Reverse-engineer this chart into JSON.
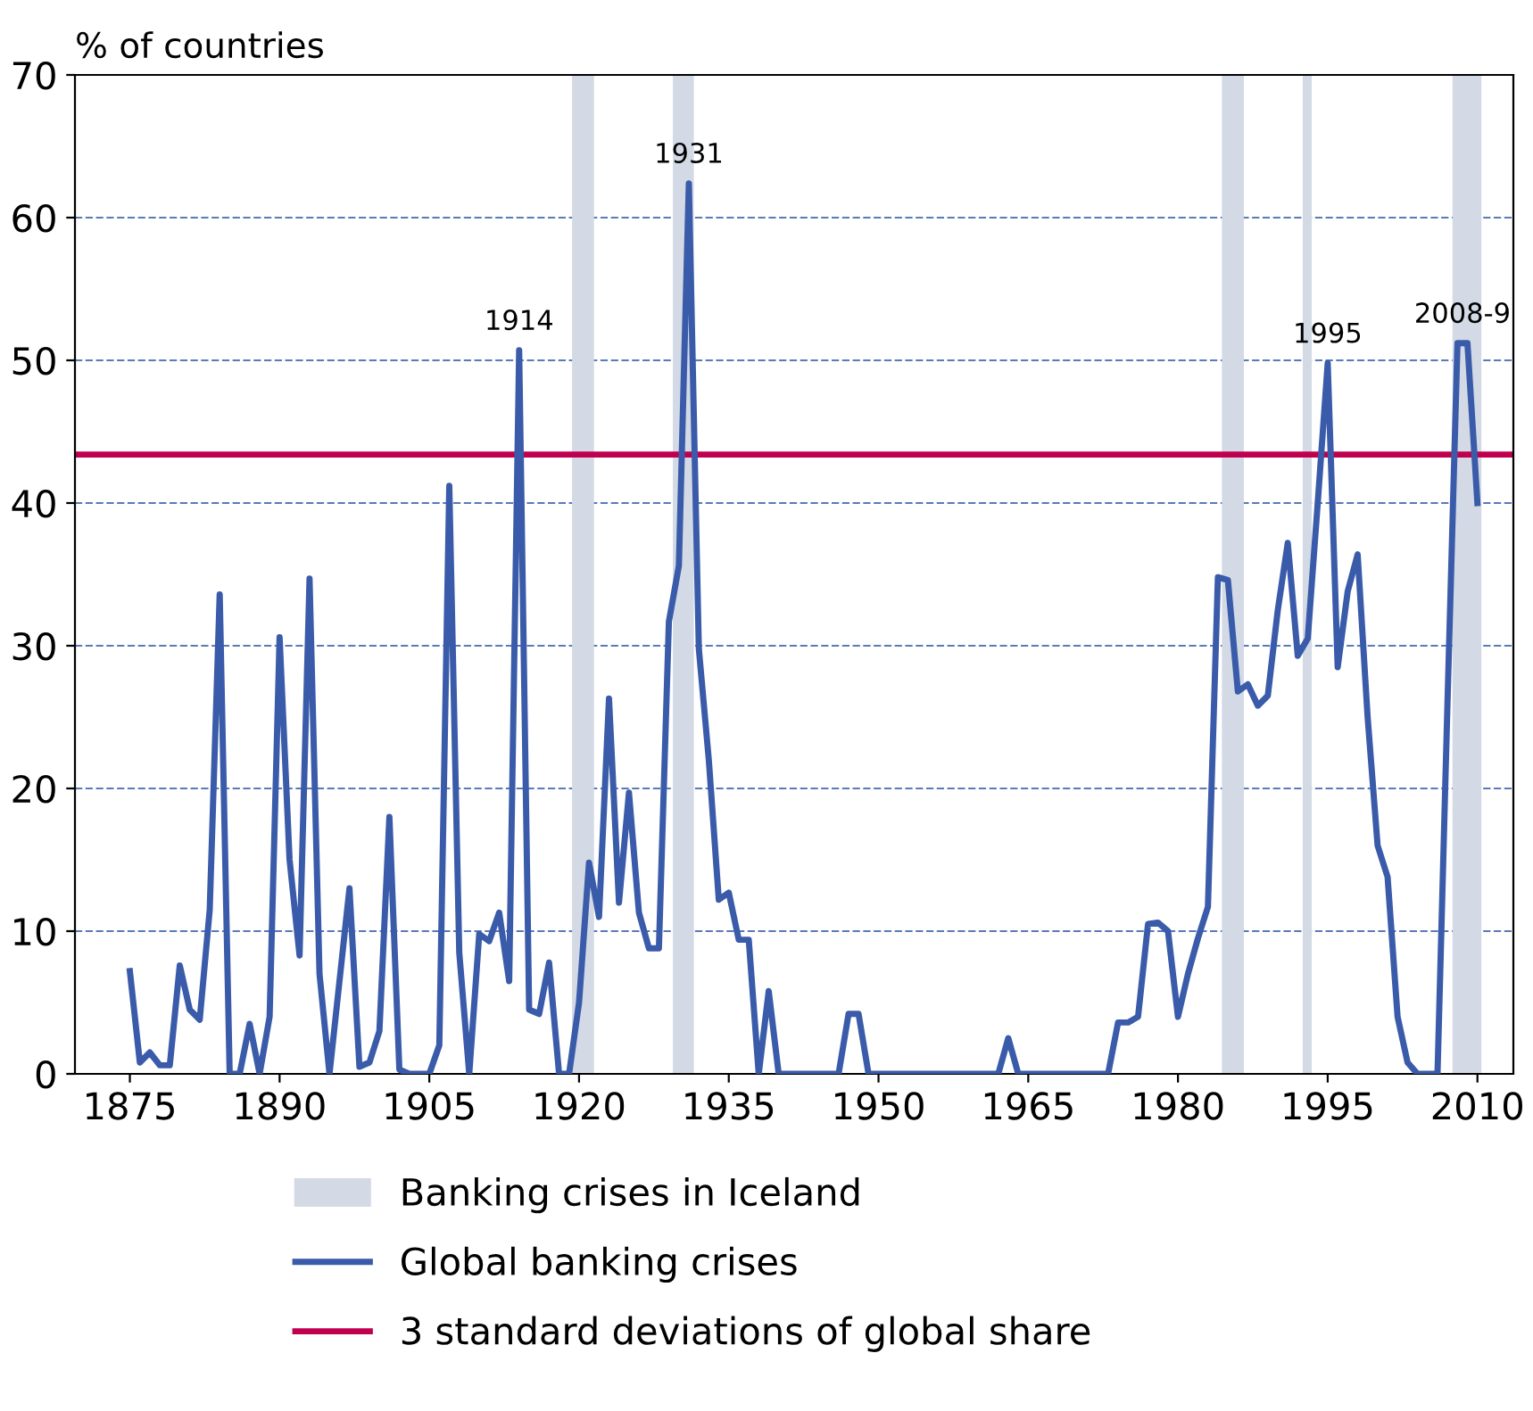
{
  "chart_data": {
    "type": "line",
    "ylabel": "% of countries",
    "x": [
      1875,
      1876,
      1877,
      1878,
      1879,
      1880,
      1881,
      1882,
      1883,
      1884,
      1885,
      1886,
      1887,
      1888,
      1889,
      1890,
      1891,
      1892,
      1893,
      1894,
      1895,
      1896,
      1897,
      1898,
      1899,
      1900,
      1901,
      1902,
      1903,
      1904,
      1905,
      1906,
      1907,
      1908,
      1909,
      1910,
      1911,
      1912,
      1913,
      1914,
      1915,
      1916,
      1917,
      1918,
      1919,
      1920,
      1921,
      1922,
      1923,
      1924,
      1925,
      1926,
      1927,
      1928,
      1929,
      1930,
      1931,
      1932,
      1933,
      1934,
      1935,
      1936,
      1937,
      1938,
      1939,
      1940,
      1941,
      1942,
      1943,
      1944,
      1945,
      1946,
      1947,
      1948,
      1949,
      1950,
      1951,
      1952,
      1953,
      1954,
      1955,
      1956,
      1957,
      1958,
      1959,
      1960,
      1961,
      1962,
      1963,
      1964,
      1965,
      1966,
      1967,
      1968,
      1969,
      1970,
      1971,
      1972,
      1973,
      1974,
      1975,
      1976,
      1977,
      1978,
      1979,
      1980,
      1981,
      1982,
      1983,
      1984,
      1985,
      1986,
      1987,
      1988,
      1989,
      1990,
      1991,
      1992,
      1993,
      1994,
      1995,
      1996,
      1997,
      1998,
      1999,
      2000,
      2001,
      2002,
      2003,
      2004,
      2005,
      2006,
      2007,
      2008,
      2009,
      2010
    ],
    "series": [
      {
        "name": "Global banking crises",
        "color": "#3a5ba9",
        "values": [
          7.2,
          0.8,
          1.5,
          0.6,
          0.6,
          7.6,
          4.5,
          3.8,
          11.5,
          33.6,
          0,
          0,
          3.5,
          0,
          4,
          30.6,
          15,
          8.3,
          34.7,
          7,
          0,
          6.5,
          13,
          0.5,
          0.8,
          3,
          18,
          0.3,
          0,
          0,
          0,
          2,
          41.2,
          8.5,
          0,
          9.8,
          9.3,
          11.3,
          6.5,
          50.7,
          4.5,
          4.2,
          7.8,
          0,
          0,
          5,
          14.8,
          11,
          26.3,
          12,
          19.7,
          11.3,
          8.8,
          8.8,
          31.7,
          35.6,
          62.4,
          29.8,
          22,
          12.2,
          12.7,
          9.4,
          9.4,
          0,
          5.8,
          0,
          0,
          0,
          0,
          0,
          0,
          0,
          4.2,
          4.2,
          0,
          0,
          0,
          0,
          0,
          0,
          0,
          0,
          0,
          0,
          0,
          0,
          0,
          0,
          2.5,
          0,
          0,
          0,
          0,
          0,
          0,
          0,
          0,
          0,
          0,
          3.6,
          3.6,
          4,
          10.5,
          10.6,
          10,
          4,
          7,
          9.5,
          11.7,
          34.8,
          34.6,
          26.8,
          27.3,
          25.8,
          26.5,
          32.5,
          37.2,
          29.3,
          30.5,
          40,
          49.8,
          28.5,
          33.8,
          36.4,
          25,
          16,
          13.8,
          4,
          0.8,
          0,
          0,
          0,
          26,
          51.2,
          51.2,
          40
        ]
      }
    ],
    "bands": [
      {
        "axis": "x",
        "from": 1919.3,
        "to": 1921.5,
        "label": "Banking crises in Iceland",
        "color": "#d3dae5"
      },
      {
        "axis": "x",
        "from": 1929.4,
        "to": 1931.5,
        "color": "#d3dae5"
      },
      {
        "axis": "x",
        "from": 1984.4,
        "to": 1986.6,
        "color": "#d3dae5"
      },
      {
        "axis": "x",
        "from": 1992.5,
        "to": 1993.4,
        "color": "#d3dae5"
      },
      {
        "axis": "x",
        "from": 2007.5,
        "to": 2010.4,
        "color": "#d3dae5"
      }
    ],
    "ref_lines": [
      {
        "axis": "y",
        "value": 43.4,
        "label": "3 standard deviations of global share",
        "color": "#c0004f"
      }
    ],
    "annotations": [
      {
        "text": "1914",
        "x": 1914,
        "y": 50.7
      },
      {
        "text": "1931",
        "x": 1931,
        "y": 62.4
      },
      {
        "text": "1995",
        "x": 1995,
        "y": 49.8
      },
      {
        "text": "2008-9",
        "x": 2008.5,
        "y": 51.2
      }
    ],
    "xlim": [
      1869.5,
      2013.6
    ],
    "xticks": [
      1875,
      1890,
      1905,
      1920,
      1935,
      1950,
      1965,
      1980,
      1995,
      2010
    ],
    "ylim": [
      0,
      70
    ],
    "yticks": [
      0,
      10,
      20,
      30,
      40,
      50,
      60,
      70
    ],
    "grid": "y",
    "legend": "bottom",
    "marker": "none",
    "line_style": "solid"
  }
}
